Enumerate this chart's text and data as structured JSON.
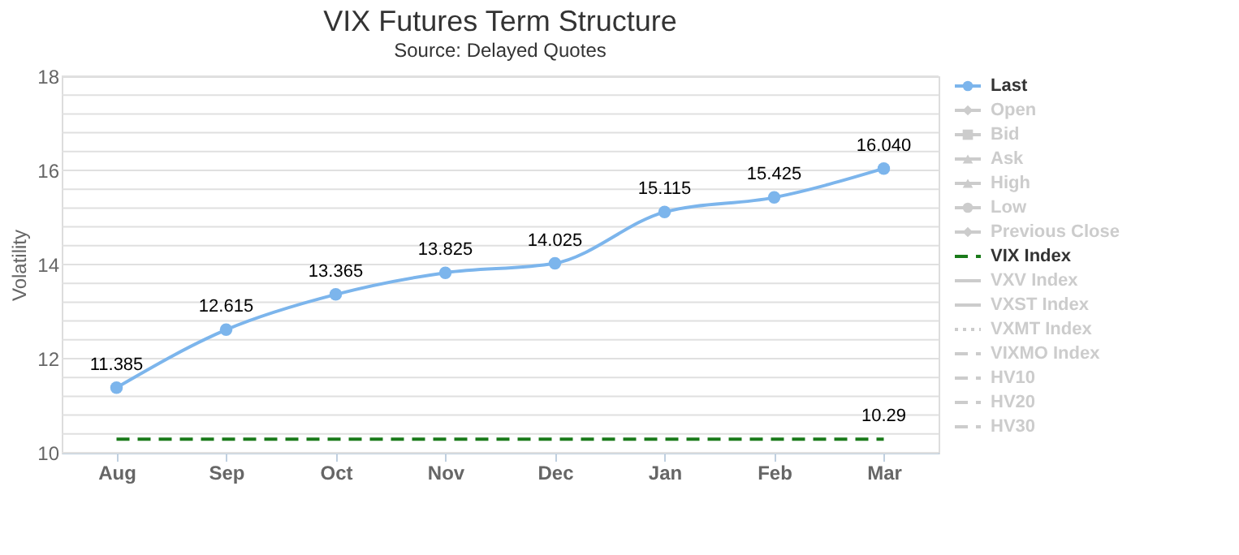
{
  "chart_data": {
    "type": "line",
    "title": "VIX Futures Term Structure",
    "subtitle": "Source: Delayed Quotes",
    "ylabel": "Volatility",
    "categories": [
      "Aug",
      "Sep",
      "Oct",
      "Nov",
      "Dec",
      "Jan",
      "Feb",
      "Mar"
    ],
    "series": [
      {
        "name": "Last",
        "color": "#7cb5ec",
        "marker": "circle",
        "line_style": "solid",
        "values": [
          11.385,
          12.615,
          13.365,
          13.825,
          14.025,
          15.115,
          15.425,
          16.04
        ],
        "value_labels": [
          "11.385",
          "12.615",
          "13.365",
          "13.825",
          "14.025",
          "15.115",
          "15.425",
          "16.040"
        ]
      },
      {
        "name": "Open",
        "color": "#cccccc",
        "marker": "diamond",
        "values": [
          null,
          null,
          null,
          null,
          null,
          null,
          null,
          null
        ]
      },
      {
        "name": "Bid",
        "color": "#cccccc",
        "marker": "square",
        "values": [
          null,
          null,
          null,
          null,
          null,
          null,
          null,
          null
        ]
      },
      {
        "name": "Ask",
        "color": "#cccccc",
        "marker": "triangle",
        "values": [
          null,
          null,
          null,
          null,
          null,
          null,
          null,
          null
        ]
      },
      {
        "name": "High",
        "color": "#cccccc",
        "marker": "triangle",
        "values": [
          null,
          null,
          null,
          null,
          null,
          null,
          null,
          null
        ]
      },
      {
        "name": "Low",
        "color": "#cccccc",
        "marker": "circle",
        "values": [
          null,
          null,
          null,
          null,
          null,
          null,
          null,
          null
        ]
      },
      {
        "name": "Previous Close",
        "color": "#cccccc",
        "marker": "diamond",
        "values": [
          null,
          null,
          null,
          null,
          null,
          null,
          null,
          null
        ]
      },
      {
        "name": "VIX Index",
        "color": "#1a7a1a",
        "marker": "none",
        "line_style": "dashed",
        "values": [
          10.29,
          10.29,
          10.29,
          10.29,
          10.29,
          10.29,
          10.29,
          10.29
        ],
        "value_labels": [
          null,
          null,
          null,
          null,
          null,
          null,
          null,
          "10.29"
        ]
      },
      {
        "name": "VXV Index",
        "color": "#cccccc",
        "marker": "none",
        "line_style": "solid",
        "values": [
          null,
          null,
          null,
          null,
          null,
          null,
          null,
          null
        ]
      },
      {
        "name": "VXST Index",
        "color": "#cccccc",
        "marker": "none",
        "line_style": "solid",
        "values": [
          null,
          null,
          null,
          null,
          null,
          null,
          null,
          null
        ]
      },
      {
        "name": "VXMT Index",
        "color": "#cccccc",
        "marker": "none",
        "line_style": "dotted",
        "values": [
          null,
          null,
          null,
          null,
          null,
          null,
          null,
          null
        ]
      },
      {
        "name": "VIXMO Index",
        "color": "#cccccc",
        "marker": "none",
        "line_style": "dashed",
        "values": [
          null,
          null,
          null,
          null,
          null,
          null,
          null,
          null
        ]
      },
      {
        "name": "HV10",
        "color": "#cccccc",
        "marker": "none",
        "line_style": "dashed",
        "values": [
          null,
          null,
          null,
          null,
          null,
          null,
          null,
          null
        ]
      },
      {
        "name": "HV20",
        "color": "#cccccc",
        "marker": "none",
        "line_style": "dashed",
        "values": [
          null,
          null,
          null,
          null,
          null,
          null,
          null,
          null
        ]
      },
      {
        "name": "HV30",
        "color": "#cccccc",
        "marker": "none",
        "line_style": "dashed",
        "values": [
          null,
          null,
          null,
          null,
          null,
          null,
          null,
          null
        ]
      }
    ],
    "ylim": [
      10,
      18
    ],
    "yticks": [
      10,
      {
        "value": 10.4,
        "label": null
      },
      {
        "value": 10.8,
        "label": null
      },
      {
        "value": 11.2,
        "label": null
      },
      {
        "value": 11.6,
        "label": null
      },
      12,
      {
        "value": 12.4,
        "label": null
      },
      {
        "value": 12.8,
        "label": null
      },
      {
        "value": 13.2,
        "label": null
      },
      {
        "value": 13.6,
        "label": null
      },
      14,
      {
        "value": 14.4,
        "label": null
      },
      {
        "value": 14.8,
        "label": null
      },
      {
        "value": 15.2,
        "label": null
      },
      {
        "value": 15.6,
        "label": null
      },
      16,
      {
        "value": 16.4,
        "label": null
      },
      {
        "value": 16.8,
        "label": null
      },
      {
        "value": 17.2,
        "label": null
      },
      {
        "value": 17.6,
        "label": null
      },
      18
    ],
    "grid": "y",
    "legend": "top right"
  }
}
